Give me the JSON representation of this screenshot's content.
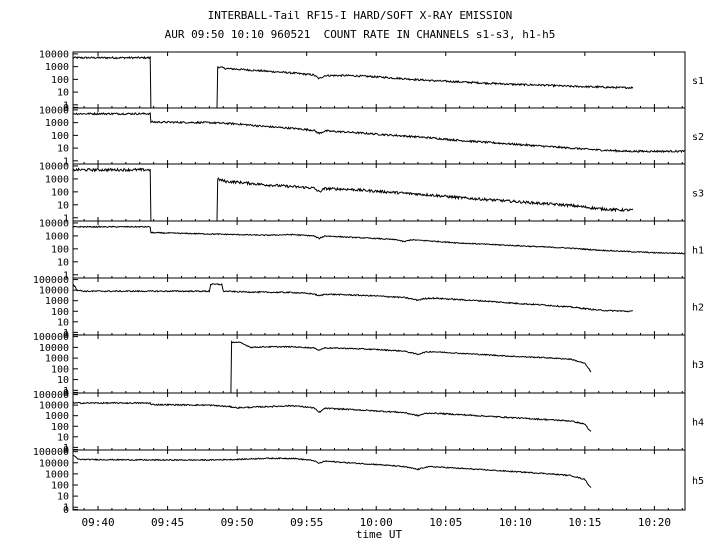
{
  "title": "INTERBALL-Tail RF15-I HARD/SOFT X-RAY EMISSION",
  "subtitle": "AUR 09:50 10:10 960521  COUNT RATE IN CHANNELS s1-s3, h1-h5",
  "chart_data": {
    "type": "line",
    "title": "INTERBALL-Tail RF15-I HARD/SOFT X-RAY EMISSION",
    "subtitle": "AUR 09:50 10:10 960521  COUNT RATE IN CHANNELS s1-s3, h1-h5",
    "xlabel": "time UT",
    "x_unit": "minutes past 09:00",
    "xlim": [
      38.2,
      82.2
    ],
    "x_ticks": [
      {
        "value": 40,
        "label": "09:40"
      },
      {
        "value": 45,
        "label": "09:45"
      },
      {
        "value": 50,
        "label": "09:50"
      },
      {
        "value": 55,
        "label": "09:55"
      },
      {
        "value": 60,
        "label": "10:00"
      },
      {
        "value": 65,
        "label": "10:05"
      },
      {
        "value": 70,
        "label": "10:10"
      },
      {
        "value": 75,
        "label": "10:15"
      },
      {
        "value": 80,
        "label": "10:20"
      }
    ],
    "y_scale": "log",
    "grid": false,
    "panels": [
      {
        "name": "s1",
        "ylim_exp": [
          -0.25,
          4.15
        ],
        "ytick_labels": [
          "10000",
          "1000",
          "100",
          "10",
          "1",
          "0"
        ],
        "points": [
          [
            38.2,
            3.7
          ],
          [
            43.7,
            3.7
          ],
          [
            43.75,
            -0.25
          ],
          [
            48.5,
            -0.25
          ],
          [
            48.55,
            3.0
          ],
          [
            49.2,
            2.85
          ],
          [
            50,
            2.8
          ],
          [
            52,
            2.65
          ],
          [
            54,
            2.5
          ],
          [
            55.5,
            2.35
          ],
          [
            55.9,
            2.05
          ],
          [
            56.3,
            2.3
          ],
          [
            58,
            2.3
          ],
          [
            60,
            2.2
          ],
          [
            62,
            2.05
          ],
          [
            64,
            1.9
          ],
          [
            66,
            1.8
          ],
          [
            68,
            1.7
          ],
          [
            70,
            1.6
          ],
          [
            72,
            1.55
          ],
          [
            74,
            1.45
          ],
          [
            76,
            1.4
          ],
          [
            77.5,
            1.35
          ],
          [
            78.4,
            1.35
          ],
          [
            78.45,
            -0.25
          ]
        ],
        "noise": 0.07
      },
      {
        "name": "s2",
        "ylim_exp": [
          -0.25,
          4.15
        ],
        "ytick_labels": [
          "10000",
          "1000",
          "100",
          "10",
          "1"
        ],
        "points": [
          [
            38.2,
            3.7
          ],
          [
            43.7,
            3.7
          ],
          [
            43.75,
            3.05
          ],
          [
            48,
            3.0
          ],
          [
            50,
            2.9
          ],
          [
            52,
            2.7
          ],
          [
            54,
            2.55
          ],
          [
            55.5,
            2.4
          ],
          [
            55.9,
            2.15
          ],
          [
            56.3,
            2.35
          ],
          [
            58,
            2.25
          ],
          [
            60,
            2.1
          ],
          [
            62,
            1.95
          ],
          [
            64,
            1.8
          ],
          [
            66,
            1.6
          ],
          [
            68,
            1.45
          ],
          [
            70,
            1.3
          ],
          [
            72,
            1.15
          ],
          [
            74,
            1.0
          ],
          [
            76,
            0.85
          ],
          [
            78,
            0.75
          ],
          [
            80,
            0.75
          ],
          [
            82.2,
            0.75
          ]
        ],
        "noise": 0.07
      },
      {
        "name": "s3",
        "ylim_exp": [
          -0.25,
          4.15
        ],
        "ytick_labels": [
          "10000",
          "1000",
          "100",
          "10",
          "1"
        ],
        "points": [
          [
            38.2,
            3.7
          ],
          [
            43.7,
            3.7
          ],
          [
            43.75,
            -0.25
          ],
          [
            48.5,
            -0.25
          ],
          [
            48.55,
            3.0
          ],
          [
            49.2,
            2.8
          ],
          [
            50,
            2.75
          ],
          [
            52,
            2.55
          ],
          [
            54,
            2.4
          ],
          [
            55.5,
            2.3
          ],
          [
            55.9,
            2.0
          ],
          [
            56.3,
            2.25
          ],
          [
            58,
            2.2
          ],
          [
            60,
            2.05
          ],
          [
            62,
            1.9
          ],
          [
            64,
            1.75
          ],
          [
            66,
            1.55
          ],
          [
            68,
            1.4
          ],
          [
            70,
            1.25
          ],
          [
            72,
            1.1
          ],
          [
            74,
            0.95
          ],
          [
            76,
            0.7
          ],
          [
            77.5,
            0.6
          ],
          [
            78.4,
            0.6
          ],
          [
            78.45,
            -0.25
          ]
        ],
        "noise": 0.1
      },
      {
        "name": "h1",
        "ylim_exp": [
          -0.25,
          4.15
        ],
        "ytick_labels": [
          "10000",
          "1000",
          "100",
          "10",
          "1"
        ],
        "points": [
          [
            38.2,
            3.7
          ],
          [
            43.7,
            3.7
          ],
          [
            43.75,
            3.25
          ],
          [
            48,
            3.15
          ],
          [
            50,
            3.1
          ],
          [
            52,
            3.05
          ],
          [
            54,
            3.1
          ],
          [
            55.5,
            3.0
          ],
          [
            55.9,
            2.8
          ],
          [
            56.3,
            3.0
          ],
          [
            58,
            2.9
          ],
          [
            60,
            2.8
          ],
          [
            61.5,
            2.7
          ],
          [
            62,
            2.55
          ],
          [
            62.5,
            2.7
          ],
          [
            64,
            2.6
          ],
          [
            66,
            2.45
          ],
          [
            68,
            2.35
          ],
          [
            70,
            2.25
          ],
          [
            72,
            2.15
          ],
          [
            74,
            2.05
          ],
          [
            76,
            1.9
          ],
          [
            78,
            1.8
          ],
          [
            80,
            1.7
          ],
          [
            82.2,
            1.65
          ]
        ],
        "noise": 0.04
      },
      {
        "name": "h2",
        "ylim_exp": [
          -0.25,
          5.15
        ],
        "ytick_labels": [
          "100000",
          "10000",
          "1000",
          "100",
          "10",
          "1",
          "0"
        ],
        "points": [
          [
            38.2,
            4.6
          ],
          [
            38.5,
            4.0
          ],
          [
            39,
            3.9
          ],
          [
            48,
            3.9
          ],
          [
            48.1,
            4.55
          ],
          [
            48.9,
            4.55
          ],
          [
            49,
            3.9
          ],
          [
            50,
            3.85
          ],
          [
            52,
            3.8
          ],
          [
            54,
            3.78
          ],
          [
            55.5,
            3.65
          ],
          [
            55.9,
            3.45
          ],
          [
            56.3,
            3.62
          ],
          [
            58,
            3.55
          ],
          [
            60,
            3.45
          ],
          [
            62,
            3.3
          ],
          [
            63,
            3.05
          ],
          [
            63.5,
            3.2
          ],
          [
            64,
            3.25
          ],
          [
            66,
            3.1
          ],
          [
            68,
            2.95
          ],
          [
            70,
            2.75
          ],
          [
            72,
            2.6
          ],
          [
            74,
            2.4
          ],
          [
            75,
            2.25
          ],
          [
            76,
            2.1
          ],
          [
            78,
            2.0
          ],
          [
            78.4,
            2.0
          ],
          [
            78.45,
            0
          ]
        ],
        "noise": 0.06
      },
      {
        "name": "h3",
        "ylim_exp": [
          -0.25,
          5.15
        ],
        "ytick_labels": [
          "100000",
          "10000",
          "1000",
          "100",
          "10",
          "1",
          "0"
        ],
        "points": [
          [
            38.2,
            -0.25
          ],
          [
            49.5,
            -0.25
          ],
          [
            49.55,
            4.5
          ],
          [
            50.2,
            4.45
          ],
          [
            51,
            4.0
          ],
          [
            52,
            4.05
          ],
          [
            54,
            4.05
          ],
          [
            55.5,
            3.95
          ],
          [
            55.9,
            3.75
          ],
          [
            56.3,
            3.95
          ],
          [
            58,
            3.9
          ],
          [
            60,
            3.8
          ],
          [
            62,
            3.65
          ],
          [
            63,
            3.35
          ],
          [
            63.5,
            3.55
          ],
          [
            64,
            3.6
          ],
          [
            66,
            3.45
          ],
          [
            68,
            3.3
          ],
          [
            70,
            3.15
          ],
          [
            72,
            3.05
          ],
          [
            74,
            2.9
          ],
          [
            75,
            2.5
          ],
          [
            75.4,
            1.8
          ],
          [
            75.45,
            -0.25
          ]
        ],
        "noise": 0.05
      },
      {
        "name": "h4",
        "ylim_exp": [
          -0.25,
          5.15
        ],
        "ytick_labels": [
          "100000",
          "10000",
          "1000",
          "100",
          "10",
          "1",
          "0"
        ],
        "points": [
          [
            38.2,
            4.2
          ],
          [
            43.7,
            4.2
          ],
          [
            43.75,
            4.05
          ],
          [
            48,
            4.0
          ],
          [
            49.5,
            3.85
          ],
          [
            50,
            3.75
          ],
          [
            52,
            3.85
          ],
          [
            54,
            3.95
          ],
          [
            55.5,
            3.75
          ],
          [
            55.9,
            3.3
          ],
          [
            56.3,
            3.7
          ],
          [
            58,
            3.6
          ],
          [
            60,
            3.45
          ],
          [
            62,
            3.3
          ],
          [
            63,
            3.0
          ],
          [
            63.5,
            3.2
          ],
          [
            64,
            3.25
          ],
          [
            66,
            3.1
          ],
          [
            68,
            2.95
          ],
          [
            70,
            2.8
          ],
          [
            72,
            2.65
          ],
          [
            74,
            2.5
          ],
          [
            75,
            2.2
          ],
          [
            75.4,
            1.5
          ],
          [
            75.45,
            -0.25
          ]
        ],
        "noise": 0.06
      },
      {
        "name": "h5",
        "ylim_exp": [
          -0.25,
          5.15
        ],
        "ytick_labels": [
          "100000",
          "10000",
          "1000",
          "100",
          "10",
          "1",
          "0"
        ],
        "points": [
          [
            38.2,
            4.7
          ],
          [
            38.6,
            4.3
          ],
          [
            43.7,
            4.25
          ],
          [
            48,
            4.25
          ],
          [
            50,
            4.3
          ],
          [
            52,
            4.4
          ],
          [
            54,
            4.4
          ],
          [
            55.5,
            4.2
          ],
          [
            55.9,
            3.95
          ],
          [
            56.3,
            4.15
          ],
          [
            58,
            4.0
          ],
          [
            60,
            3.85
          ],
          [
            62,
            3.65
          ],
          [
            63,
            3.4
          ],
          [
            63.5,
            3.6
          ],
          [
            64,
            3.65
          ],
          [
            66,
            3.5
          ],
          [
            68,
            3.35
          ],
          [
            70,
            3.2
          ],
          [
            72,
            3.05
          ],
          [
            74,
            2.85
          ],
          [
            75,
            2.5
          ],
          [
            75.4,
            1.8
          ],
          [
            75.45,
            -0.25
          ]
        ],
        "noise": 0.05
      }
    ]
  }
}
